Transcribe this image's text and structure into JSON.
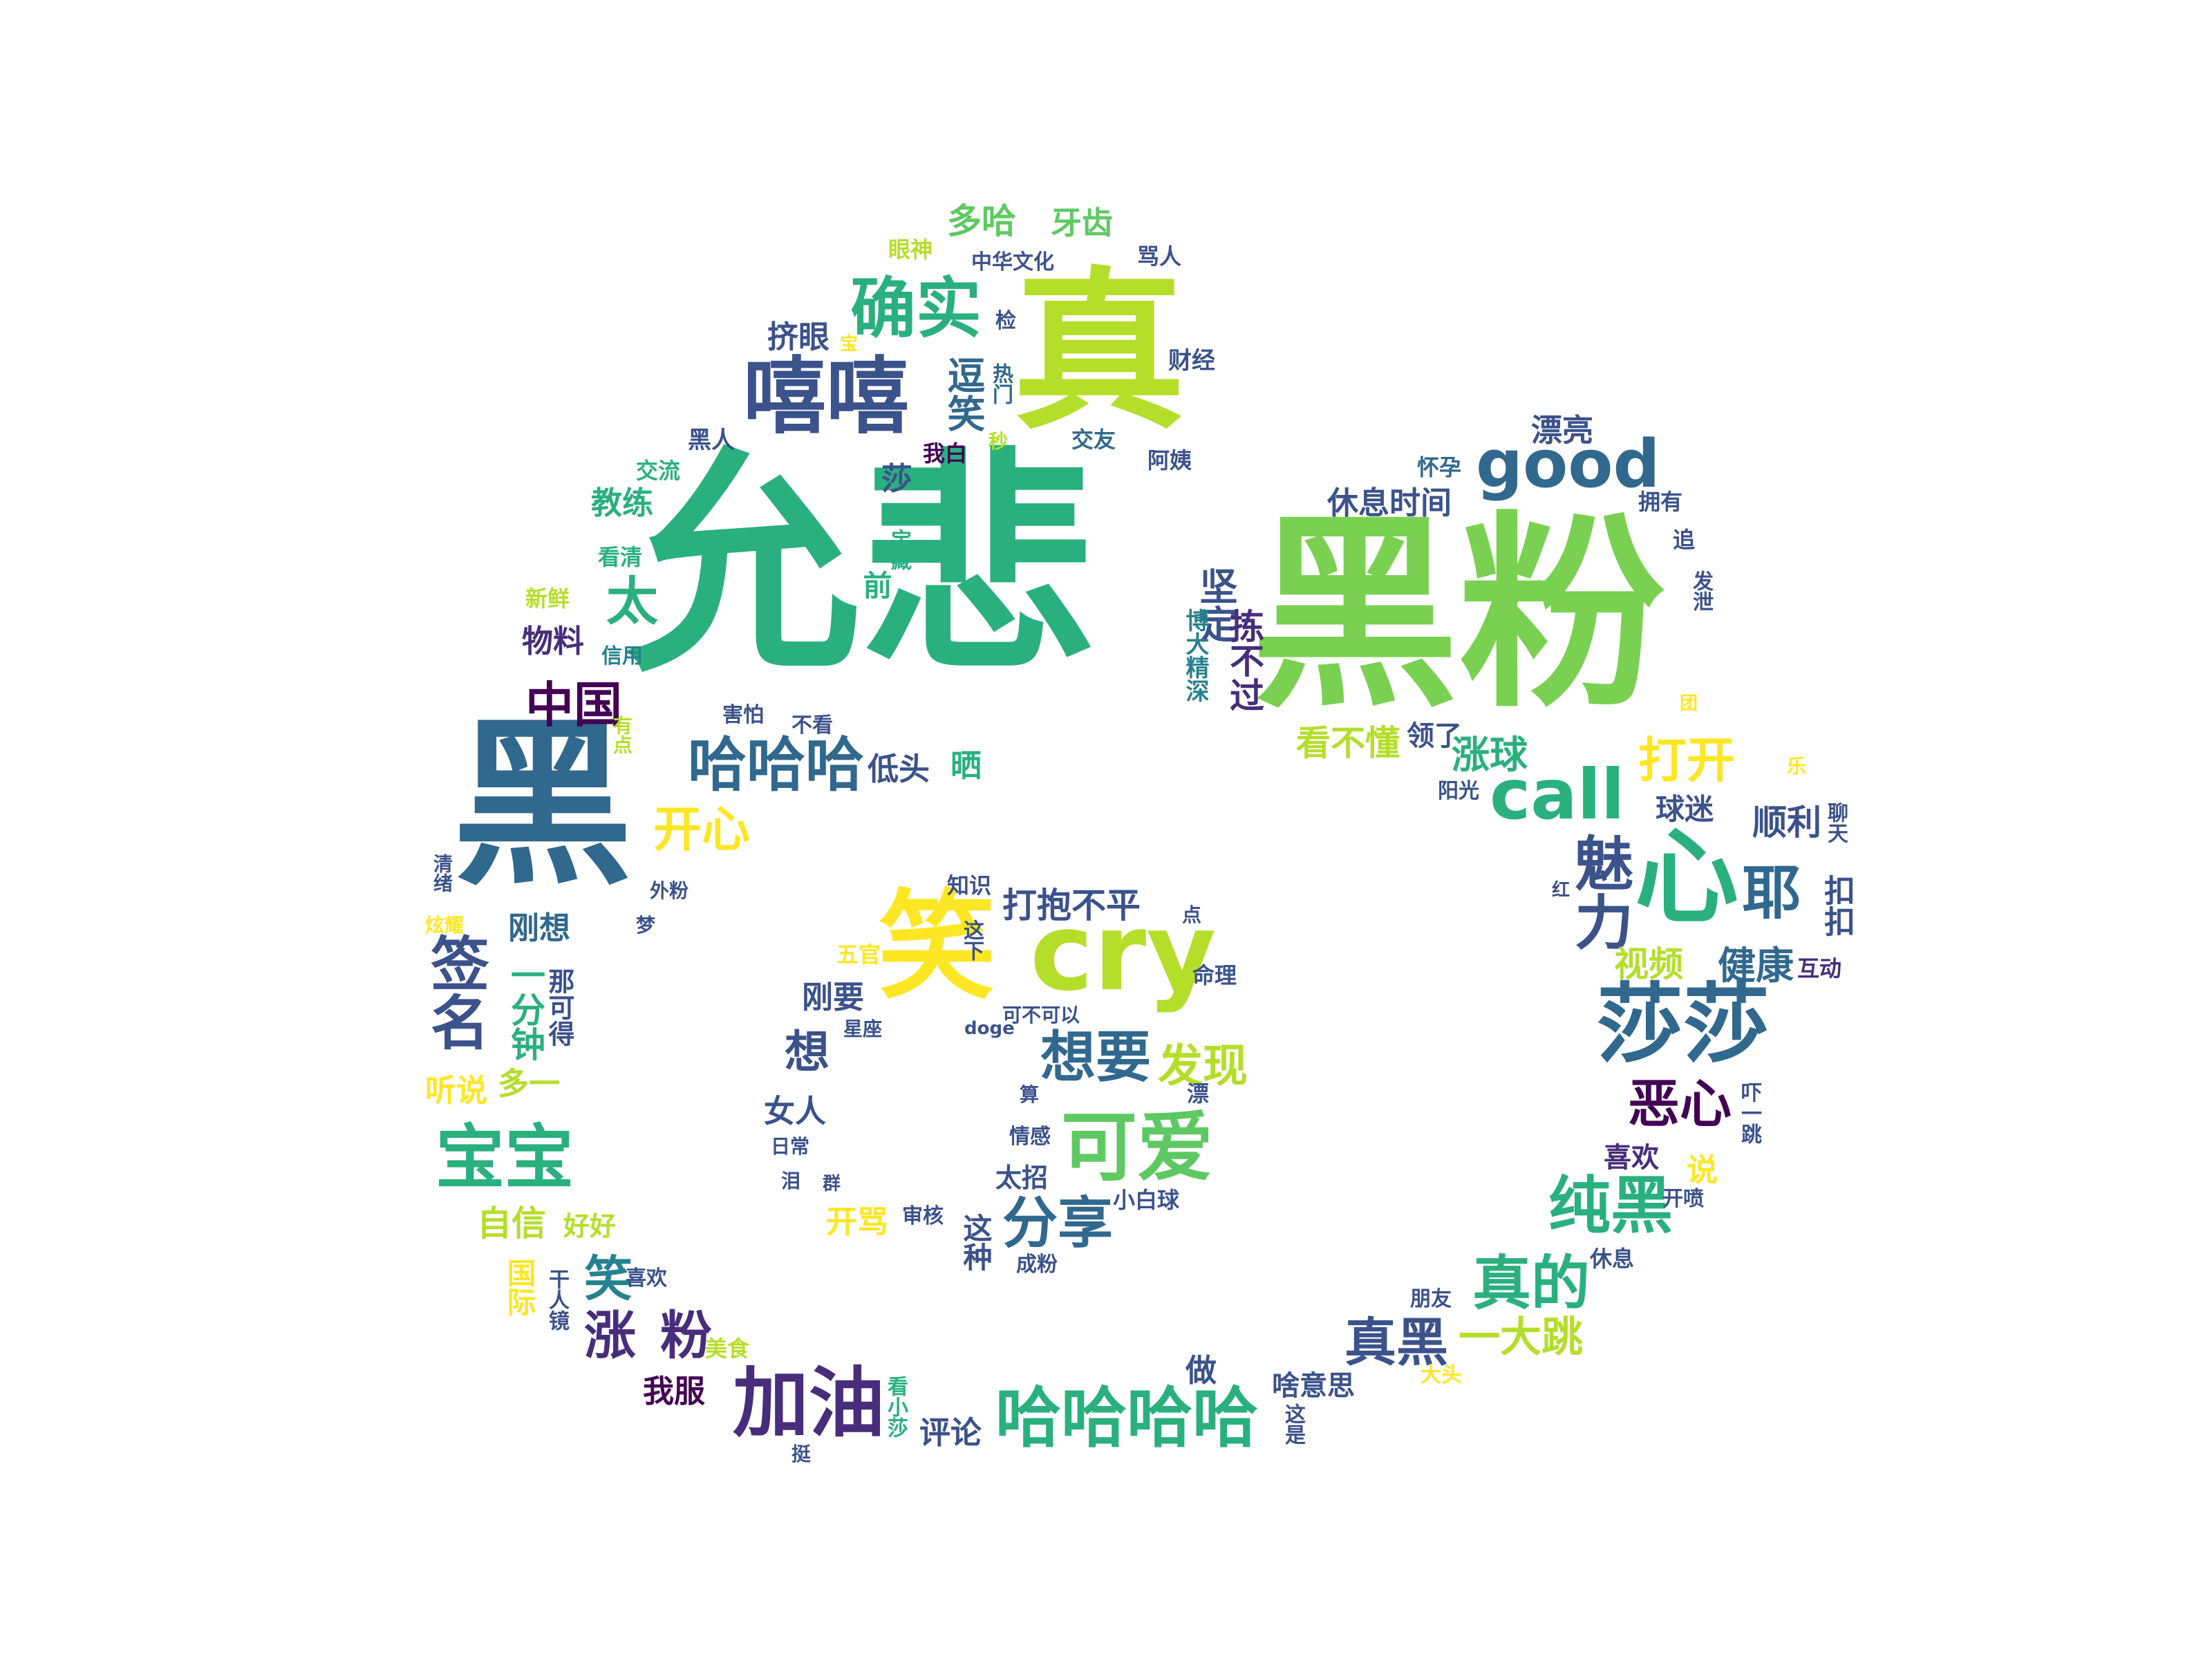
{
  "palette": {
    "purple": "#440154",
    "indigo": "#472d7b",
    "blue": "#3b528b",
    "steel": "#31688e",
    "teal": "#26828e",
    "teal2": "#21918c",
    "green": "#2ab07f",
    "lime": "#7ad151",
    "yellowgreen": "#b5de2b",
    "yellow": "#fde725",
    "green2": "#5ec962"
  },
  "words": [
    "允悲",
    "黑粉",
    "真",
    "黑",
    "心",
    "笑",
    "cry",
    "莎莎",
    "嘻嘻",
    "good",
    "call",
    "确实",
    "哈哈哈",
    "哈哈哈哈",
    "加油",
    "宝宝",
    "可爱",
    "分享",
    "想要",
    "发现",
    "真的",
    "真黑",
    "一大跳",
    "纯黑",
    "恶心",
    "魅力",
    "耶",
    "健康",
    "视频",
    "打开",
    "涨球",
    "顺利",
    "球迷",
    "开心",
    "中国",
    "太",
    "坚定",
    "拣不过",
    "博大精深",
    "晒",
    "低头",
    "看不懂",
    "领了",
    "多哈",
    "牙齿",
    "眼神",
    "中华文化",
    "骂人",
    "挤眼",
    "宝",
    "检",
    "财经",
    "热门",
    "逗笑",
    "交友",
    "阿姨",
    "黑人",
    "交流",
    "我白",
    "秒",
    "莎",
    "教练",
    "看清",
    "新鲜",
    "物料",
    "信用",
    "害怕",
    "不看",
    "签名",
    "刚想",
    "一分钟",
    "那可得",
    "听说",
    "多一",
    "自信",
    "好好",
    "国际",
    "干人镜",
    "涨",
    "笑",
    "粉",
    "喜欢",
    "美食",
    "我服",
    "看小莎",
    "评论",
    "挺",
    "做",
    "啥意思",
    "这是",
    "大头",
    "朋友",
    "休息",
    "开喷",
    "说",
    "吓一跳",
    "喜欢",
    "互动",
    "扣扣",
    "聊天",
    "红",
    "阳光",
    "休息时间",
    "怀孕",
    "拥有",
    "追",
    "漂亮",
    "发泄",
    "打抱不平",
    "知识",
    "五官",
    "这下",
    "点",
    "命理",
    "刚要",
    "doge",
    "可不可以",
    "星座",
    "想",
    "女人",
    "算",
    "日常",
    "泪",
    "情感",
    "群",
    "太招",
    "开骂",
    "审核",
    "这种",
    "小白球",
    "成粉",
    "漂",
    "清绪",
    "炫耀",
    "外粉",
    "梦",
    "前",
    "宝藏",
    "团",
    "乐",
    "有点"
  ]
}
